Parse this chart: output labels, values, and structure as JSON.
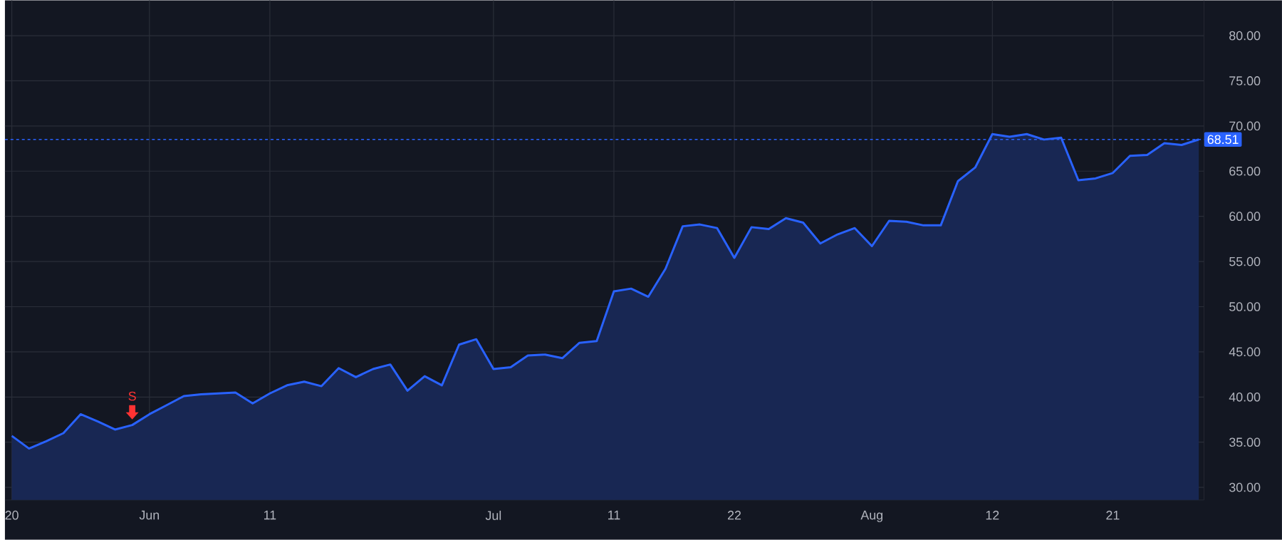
{
  "chart_data": {
    "type": "area",
    "categories": [
      "20",
      null,
      null,
      null,
      null,
      null,
      null,
      null,
      "Jun",
      null,
      null,
      null,
      null,
      null,
      null,
      "11",
      null,
      null,
      null,
      null,
      null,
      null,
      null,
      null,
      null,
      null,
      null,
      null,
      "Jul",
      null,
      null,
      null,
      null,
      null,
      null,
      "11",
      null,
      null,
      null,
      null,
      null,
      null,
      "22",
      null,
      null,
      null,
      null,
      null,
      null,
      null,
      "Aug",
      null,
      null,
      null,
      null,
      null,
      null,
      "12",
      null,
      null,
      null,
      null,
      null,
      null,
      "21",
      null,
      null,
      null,
      null,
      null
    ],
    "series": [
      {
        "color": "#2962ff",
        "values": [
          35.7,
          34.3,
          35.1,
          36.0,
          38.1,
          37.3,
          36.4,
          36.9,
          38.1,
          39.1,
          40.1,
          40.3,
          40.4,
          40.5,
          39.3,
          40.4,
          41.3,
          41.7,
          41.2,
          43.2,
          42.2,
          43.1,
          43.6,
          40.7,
          42.3,
          41.3,
          45.8,
          46.4,
          43.1,
          43.3,
          44.6,
          44.7,
          44.3,
          46.0,
          46.2,
          51.7,
          52.0,
          51.1,
          54.2,
          58.9,
          59.1,
          58.7,
          55.4,
          58.8,
          58.6,
          59.8,
          59.3,
          57.0,
          58.0,
          58.7,
          56.7,
          59.5,
          59.4,
          59.0,
          59.0,
          63.9,
          65.4,
          69.1,
          68.8,
          69.1,
          68.5,
          68.7,
          64.0,
          64.2,
          64.8,
          66.7,
          66.8,
          68.1,
          67.9,
          68.51
        ]
      }
    ],
    "ylim": [
      28.6,
      83.9
    ],
    "yticks": [
      {
        "value": 30,
        "label": "30.00"
      },
      {
        "value": 35,
        "label": "35.00"
      },
      {
        "value": 40,
        "label": "40.00"
      },
      {
        "value": 45,
        "label": "45.00"
      },
      {
        "value": 50,
        "label": "50.00"
      },
      {
        "value": 55,
        "label": "55.00"
      },
      {
        "value": 60,
        "label": "60.00"
      },
      {
        "value": 65,
        "label": "65.00"
      },
      {
        "value": 70,
        "label": "70.00"
      },
      {
        "value": 75,
        "label": "75.00"
      },
      {
        "value": 80,
        "label": "80.00"
      }
    ],
    "grid": true,
    "ref_lines": [
      {
        "axis": "y",
        "value": 68.51,
        "label": "68.51",
        "color": "#2962ff",
        "line_style": "dashed"
      }
    ],
    "annotations": [
      "S"
    ]
  }
}
